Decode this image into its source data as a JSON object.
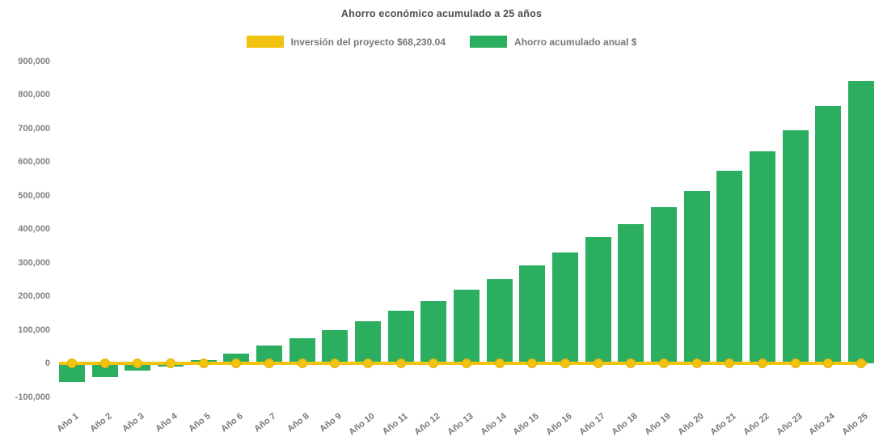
{
  "title": "Ahorro económico acumulado a 25 años",
  "legend": [
    {
      "label": "Inversión del proyecto $68,230.04",
      "color": "#f2c40f"
    },
    {
      "label": "Ahorro acumulado anual $",
      "color": "#2bae5f"
    }
  ],
  "chart_data": {
    "type": "bar",
    "title": "Ahorro económico acumulado a 25 años",
    "categories": [
      "Año 1",
      "Año 2",
      "Año 3",
      "Año 4",
      "Año 5",
      "Año 6",
      "Año 7",
      "Año 8",
      "Año 9",
      "Año 10",
      "Año 11",
      "Año 12",
      "Año 13",
      "Año 14",
      "Año 15",
      "Año 16",
      "Año 17",
      "Año 18",
      "Año 19",
      "Año 20",
      "Año 21",
      "Año 22",
      "Año 23",
      "Año 24",
      "Año 25"
    ],
    "series": [
      {
        "name": "Ahorro acumulado anual $",
        "type": "bar",
        "color": "#2bae5f",
        "values": [
          -55000,
          -41000,
          -22000,
          -9000,
          10000,
          29000,
          52000,
          75000,
          99000,
          125000,
          157000,
          186000,
          219000,
          251000,
          291000,
          330000,
          376000,
          415000,
          465000,
          513000,
          573000,
          632000,
          694000,
          766000,
          840000
        ]
      },
      {
        "name": "Inversión del proyecto $68,230.04",
        "type": "line",
        "color": "#f2c40f",
        "investment_amount": 68230.04,
        "values": [
          0,
          0,
          0,
          0,
          0,
          0,
          0,
          0,
          0,
          0,
          0,
          0,
          0,
          0,
          0,
          0,
          0,
          0,
          0,
          0,
          0,
          0,
          0,
          0,
          0
        ]
      }
    ],
    "xlabel": "",
    "ylabel": "",
    "ylim": [
      -100000,
      900000
    ],
    "ytick_step": 100000,
    "ytick_labels": [
      "900,000",
      "800,000",
      "700,000",
      "600,000",
      "500,000",
      "400,000",
      "300,000",
      "200,000",
      "100,000",
      "0",
      "-100,000"
    ],
    "grid": false,
    "legend_position": "top"
  }
}
